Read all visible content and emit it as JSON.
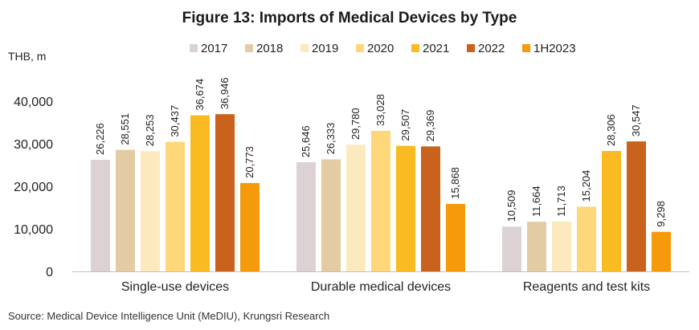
{
  "chart_data": {
    "type": "bar",
    "title": "Figure 13: Imports of Medical Devices by Type",
    "unit_label": "THB, m",
    "categories": [
      "Single-use devices",
      "Durable medical devices",
      "Reagents and test kits"
    ],
    "series": [
      {
        "name": "2017",
        "color": "#dcd1d3",
        "values": [
          26226,
          25646,
          10509
        ],
        "labels": [
          "26,226",
          "25,646",
          "10,509"
        ]
      },
      {
        "name": "2018",
        "color": "#e3cca4",
        "values": [
          28551,
          26333,
          11664
        ],
        "labels": [
          "28,551",
          "26,333",
          "11,664"
        ]
      },
      {
        "name": "2019",
        "color": "#fde9be",
        "values": [
          28253,
          29780,
          11713
        ],
        "labels": [
          "28,253",
          "29,780",
          "11,713"
        ]
      },
      {
        "name": "2020",
        "color": "#fdd77a",
        "values": [
          30437,
          33028,
          15204
        ],
        "labels": [
          "30,437",
          "33,028",
          "15,204"
        ]
      },
      {
        "name": "2021",
        "color": "#f9bb21",
        "values": [
          36674,
          29507,
          28306
        ],
        "labels": [
          "36,674",
          "29,507",
          "28,306"
        ]
      },
      {
        "name": "2022",
        "color": "#c8621c",
        "values": [
          36946,
          29369,
          30547
        ],
        "labels": [
          "36,946",
          "29,369",
          "30,547"
        ]
      },
      {
        "name": "1H2023",
        "color": "#f59a0a",
        "values": [
          20773,
          15868,
          9298
        ],
        "labels": [
          "20,773",
          "15,868",
          "9,298"
        ]
      }
    ],
    "ylim": [
      0,
      40000
    ],
    "yticks": [
      0,
      10000,
      20000,
      30000,
      40000
    ],
    "ytick_labels": [
      "0",
      "10,000",
      "20,000",
      "30,000",
      "40,000"
    ],
    "grid": false,
    "legend_position": "top",
    "source": "Source: Medical Device Intelligence Unit (MeDIU), Krungsri Research"
  }
}
